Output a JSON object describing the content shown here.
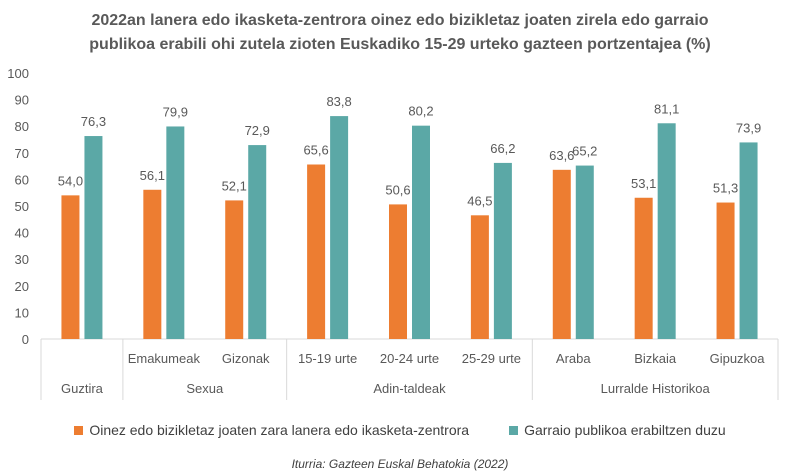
{
  "chart_data": {
    "type": "bar",
    "title_lines": [
      "2022an lanera edo ikasketa-zentrora oinez edo bizikletaz joaten zirela edo garraio",
      "publikoa erabili ohi zutela zioten Euskadiko 15-29 urteko gazteen portzentajea (%)"
    ],
    "categories": [
      "Guztira",
      "Emakumeak",
      "Gizonak",
      "15-19 urte",
      "20-24 urte",
      "25-29 urte",
      "Araba",
      "Bizkaia",
      "Gipuzkoa"
    ],
    "groups": [
      {
        "label": "Guztira",
        "categories": [
          "Guztira"
        ],
        "top_label": false
      },
      {
        "label": "Sexua",
        "categories": [
          "Emakumeak",
          "Gizonak"
        ],
        "top_label": true
      },
      {
        "label": "Adin-taldeak",
        "categories": [
          "15-19 urte",
          "20-24 urte",
          "25-29 urte"
        ],
        "top_label": true
      },
      {
        "label": "Lurralde Historikoa",
        "categories": [
          "Araba",
          "Bizkaia",
          "Gipuzkoa"
        ],
        "top_label": true
      }
    ],
    "series": [
      {
        "name": "Oinez edo bizikletaz joaten zara lanera edo ikasketa-zentrora",
        "color": "#ED7D31",
        "values": [
          54.0,
          56.1,
          52.1,
          65.6,
          50.6,
          46.5,
          63.6,
          53.1,
          51.3
        ],
        "labels": [
          "54,0",
          "56,1",
          "52,1",
          "65,6",
          "50,6",
          "46,5",
          "63,6",
          "53,1",
          "51,3"
        ]
      },
      {
        "name": "Garraio publikoa erabiltzen duzu",
        "color": "#5BA8A6",
        "values": [
          76.3,
          79.9,
          72.9,
          83.8,
          80.2,
          66.2,
          65.2,
          81.1,
          73.9
        ],
        "labels": [
          "76,3",
          "79,9",
          "72,9",
          "83,8",
          "80,2",
          "66,2",
          "65,2",
          "81,1",
          "73,9"
        ]
      }
    ],
    "ylim": [
      0,
      100
    ],
    "yticks": [
      "0",
      "10",
      "20",
      "30",
      "40",
      "50",
      "60",
      "70",
      "80",
      "90",
      "100"
    ],
    "grid": false,
    "legend": "bottom"
  },
  "source": "Iturria: Gazteen Euskal Behatokia (2022)"
}
